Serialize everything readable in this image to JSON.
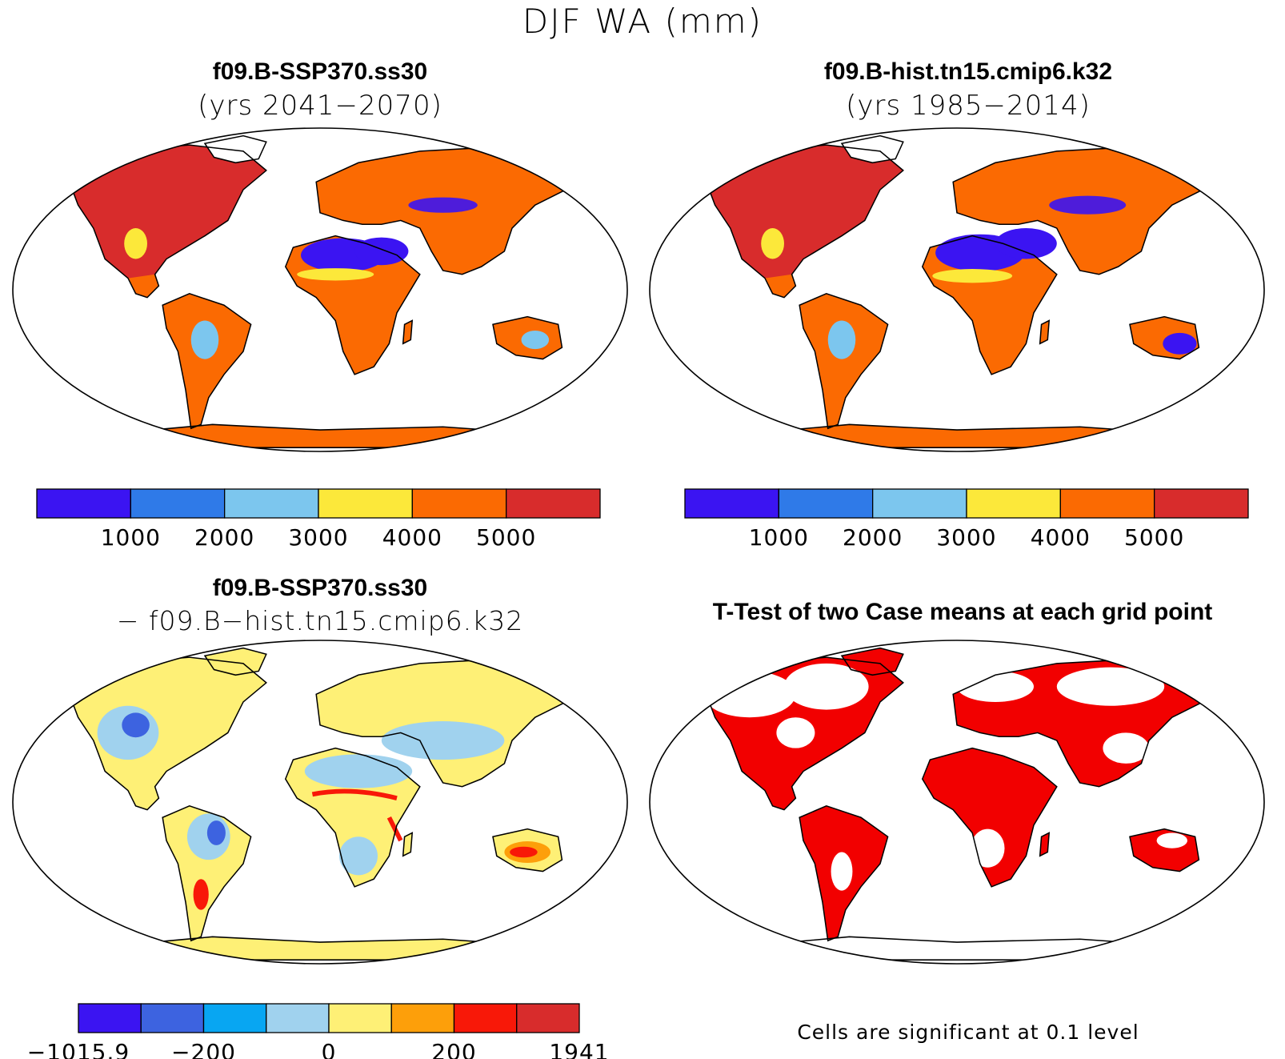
{
  "figure": {
    "title": "DJF WA (mm)"
  },
  "panels": [
    {
      "title": "f09.B-SSP370.ss30",
      "subtitle": "(yrs 2041−2070)",
      "colorbar": {
        "colors": [
          "#3b14f2",
          "#2f7ae8",
          "#7cc6ee",
          "#fce83a",
          "#fb6a02",
          "#d82c2c"
        ],
        "labels": [
          "1000",
          "2000",
          "3000",
          "4000",
          "5000"
        ]
      }
    },
    {
      "title": "f09.B-hist.tn15.cmip6.k32",
      "subtitle": "(yrs 1985−2014)",
      "colorbar": {
        "colors": [
          "#3b14f2",
          "#2f7ae8",
          "#7cc6ee",
          "#fce83a",
          "#fb6a02",
          "#d82c2c"
        ],
        "labels": [
          "1000",
          "2000",
          "3000",
          "4000",
          "5000"
        ]
      }
    },
    {
      "title": "f09.B-SSP370.ss30",
      "subtitle": "− f09.B−hist.tn15.cmip6.k32",
      "colorbar": {
        "colors": [
          "#3b14f2",
          "#3d63e0",
          "#08a6f2",
          "#a0d2ee",
          "#fef076",
          "#fd9f0a",
          "#f81808",
          "#d82c2c"
        ],
        "labels": [
          "−1015.9",
          "−200",
          "0",
          "200",
          "1941"
        ]
      }
    },
    {
      "title": "T-Test of two Case means at each grid point",
      "note": "Cells are significant at 0.1 level",
      "color": "#f20000"
    }
  ]
}
